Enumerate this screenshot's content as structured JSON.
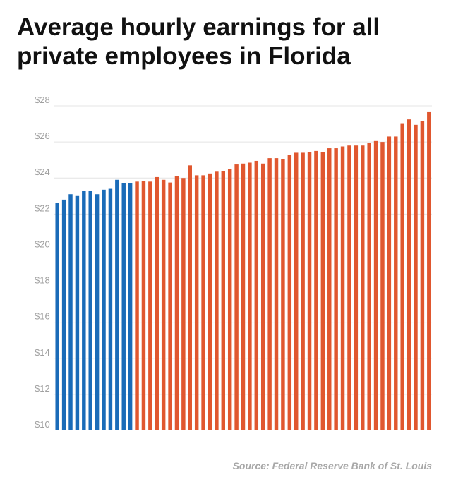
{
  "chart_data": {
    "type": "bar",
    "title": "Average hourly earnings for all private employees in Florida",
    "xlabel": "",
    "ylabel": "",
    "ylim": [
      10,
      28
    ],
    "yticks": [
      10,
      12,
      14,
      16,
      18,
      20,
      22,
      24,
      26,
      28
    ],
    "ytick_labels": [
      "$10",
      "$12",
      "$14",
      "$16",
      "$18",
      "$20",
      "$22",
      "$24",
      "$26",
      "$28"
    ],
    "grid": true,
    "colors": {
      "first_segment": "#1a6bb8",
      "second_segment": "#e0572f",
      "grid": "#e4e4e4"
    },
    "first_segment_count": 12,
    "values": [
      22.6,
      22.8,
      23.1,
      23.0,
      23.3,
      23.3,
      23.1,
      23.35,
      23.4,
      23.9,
      23.7,
      23.7,
      23.8,
      23.85,
      23.8,
      24.05,
      23.9,
      23.75,
      24.1,
      24.0,
      24.7,
      24.15,
      24.15,
      24.25,
      24.35,
      24.4,
      24.5,
      24.75,
      24.8,
      24.85,
      24.95,
      24.8,
      25.1,
      25.1,
      25.05,
      25.3,
      25.4,
      25.4,
      25.45,
      25.5,
      25.45,
      25.65,
      25.65,
      25.75,
      25.8,
      25.8,
      25.8,
      25.95,
      26.05,
      26.0,
      26.3,
      26.3,
      27.0,
      27.25,
      26.95,
      27.15,
      27.65
    ]
  },
  "source": "Source: Federal Reserve Bank of St. Louis"
}
